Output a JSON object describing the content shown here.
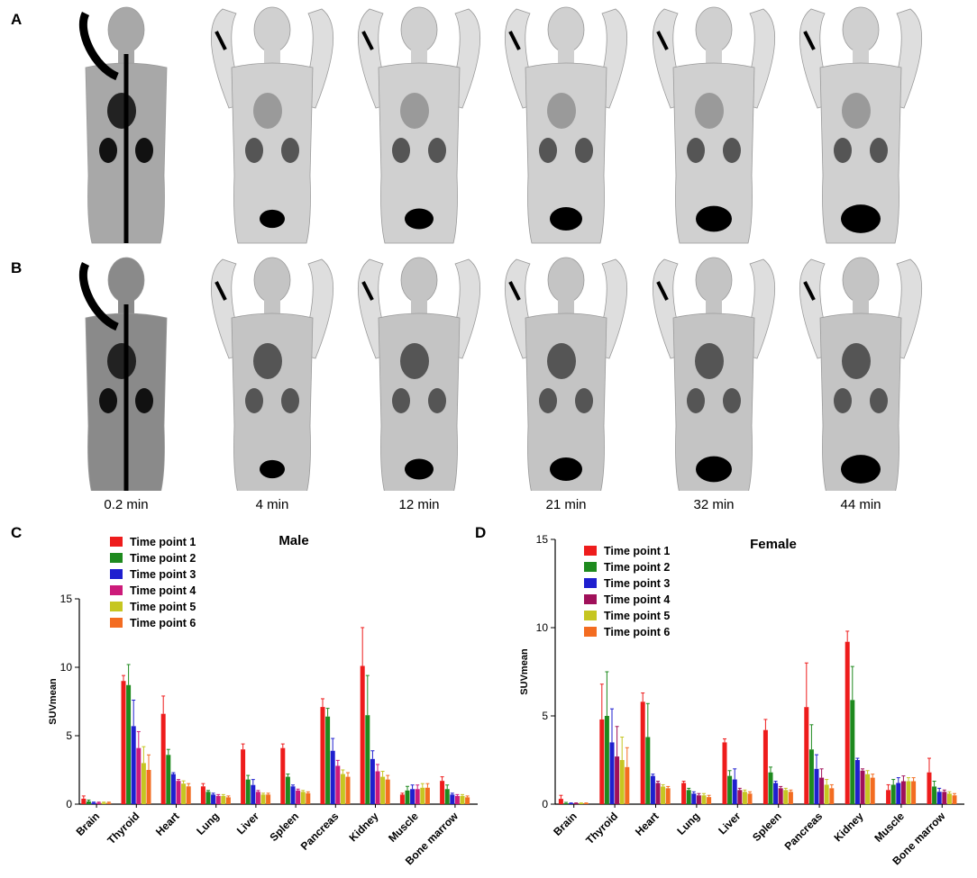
{
  "panels": {
    "a": "A",
    "b": "B",
    "c": "C",
    "d": "D"
  },
  "time_labels": [
    "0.2 min",
    "4 min",
    "12 min",
    "21 min",
    "32 min",
    "44 min"
  ],
  "chart_data": [
    {
      "type": "bar",
      "title": "Male",
      "ylabel": "SUVmean",
      "xlabel": "",
      "ylim": [
        0,
        15
      ],
      "yticks": [
        0,
        5,
        10,
        15
      ],
      "legend": "top-left",
      "categories": [
        "Brain",
        "Thyroid",
        "Heart",
        "Lung",
        "Liver",
        "Spleen",
        "Pancreas",
        "Kidney",
        "Muscle",
        "Bone marrow"
      ],
      "series": [
        {
          "name": "Time point 1",
          "color": "#ee1c1c",
          "values": [
            0.4,
            9.0,
            6.6,
            1.3,
            4.0,
            4.1,
            7.1,
            10.1,
            0.7,
            1.7
          ],
          "errors": [
            0.2,
            0.4,
            1.3,
            0.2,
            0.4,
            0.3,
            0.6,
            2.8,
            0.1,
            0.3
          ]
        },
        {
          "name": "Time point 2",
          "color": "#1e8a1e",
          "values": [
            0.2,
            8.7,
            3.6,
            0.9,
            1.8,
            2.0,
            6.4,
            6.5,
            1.0,
            1.1
          ],
          "errors": [
            0.1,
            1.5,
            0.4,
            0.1,
            0.3,
            0.2,
            0.6,
            2.9,
            0.3,
            0.3
          ]
        },
        {
          "name": "Time point 3",
          "color": "#1f1fcf",
          "values": [
            0.1,
            5.7,
            2.2,
            0.7,
            1.4,
            1.3,
            3.9,
            3.3,
            1.1,
            0.7
          ],
          "errors": [
            0.05,
            1.9,
            0.1,
            0.1,
            0.4,
            0.1,
            0.9,
            0.6,
            0.3,
            0.1
          ]
        },
        {
          "name": "Time point 4",
          "color": "#cc1b7a",
          "values": [
            0.1,
            4.1,
            1.7,
            0.6,
            0.9,
            1.0,
            2.8,
            2.4,
            1.1,
            0.6
          ],
          "errors": [
            0.05,
            1.2,
            0.1,
            0.1,
            0.1,
            0.1,
            0.4,
            0.5,
            0.3,
            0.1
          ]
        },
        {
          "name": "Time point 5",
          "color": "#c6c621",
          "values": [
            0.1,
            3.0,
            1.5,
            0.6,
            0.7,
            0.9,
            2.2,
            2.0,
            1.2,
            0.6
          ],
          "errors": [
            0.05,
            1.2,
            0.2,
            0.1,
            0.1,
            0.1,
            0.3,
            0.4,
            0.3,
            0.1
          ]
        },
        {
          "name": "Time point 6",
          "color": "#f36c21",
          "values": [
            0.1,
            2.5,
            1.3,
            0.5,
            0.7,
            0.8,
            2.0,
            1.8,
            1.2,
            0.5
          ],
          "errors": [
            0.05,
            1.1,
            0.2,
            0.1,
            0.1,
            0.1,
            0.3,
            0.3,
            0.3,
            0.1
          ]
        }
      ]
    },
    {
      "type": "bar",
      "title": "Female",
      "ylabel": "SUVmean",
      "xlabel": "",
      "ylim": [
        0,
        15
      ],
      "yticks": [
        0,
        5,
        10,
        15
      ],
      "legend": "top-left",
      "categories": [
        "Brain",
        "Thyroid",
        "Heart",
        "Lung",
        "Liver",
        "Spleen",
        "Pancreas",
        "Kidney",
        "Muscle",
        "Bone marrow"
      ],
      "series": [
        {
          "name": "Time point 1",
          "color": "#ee1c1c",
          "values": [
            0.3,
            4.8,
            5.8,
            1.2,
            3.5,
            4.2,
            5.5,
            9.2,
            0.8,
            1.8
          ],
          "errors": [
            0.2,
            2.0,
            0.5,
            0.1,
            0.2,
            0.6,
            2.5,
            0.6,
            0.3,
            0.8
          ]
        },
        {
          "name": "Time point 2",
          "color": "#1e8a1e",
          "values": [
            0.05,
            5.0,
            3.8,
            0.8,
            1.6,
            1.8,
            3.1,
            5.9,
            1.1,
            1.0
          ],
          "errors": [
            0.05,
            2.5,
            1.9,
            0.1,
            0.3,
            0.3,
            1.4,
            1.9,
            0.3,
            0.3
          ]
        },
        {
          "name": "Time point 3",
          "color": "#1f1fcf",
          "values": [
            0.05,
            3.5,
            1.6,
            0.6,
            1.4,
            1.2,
            2.0,
            2.5,
            1.2,
            0.7
          ],
          "errors": [
            0.02,
            1.9,
            0.1,
            0.1,
            0.6,
            0.1,
            0.8,
            0.1,
            0.3,
            0.2
          ]
        },
        {
          "name": "Time point 4",
          "color": "#a0105a",
          "values": [
            0.05,
            2.7,
            1.2,
            0.5,
            0.8,
            0.9,
            1.5,
            1.9,
            1.3,
            0.7
          ],
          "errors": [
            0.02,
            1.7,
            0.1,
            0.1,
            0.1,
            0.1,
            0.5,
            0.1,
            0.3,
            0.1
          ]
        },
        {
          "name": "Time point 5",
          "color": "#c6c621",
          "values": [
            0.05,
            2.5,
            1.0,
            0.5,
            0.7,
            0.8,
            1.1,
            1.7,
            1.3,
            0.6
          ],
          "errors": [
            0.02,
            1.3,
            0.1,
            0.1,
            0.1,
            0.1,
            0.3,
            0.2,
            0.2,
            0.1
          ]
        },
        {
          "name": "Time point 6",
          "color": "#f36c21",
          "values": [
            0.05,
            2.1,
            0.9,
            0.4,
            0.6,
            0.7,
            0.9,
            1.5,
            1.3,
            0.5
          ],
          "errors": [
            0.02,
            1.1,
            0.1,
            0.1,
            0.1,
            0.1,
            0.2,
            0.2,
            0.2,
            0.1
          ]
        }
      ]
    }
  ]
}
